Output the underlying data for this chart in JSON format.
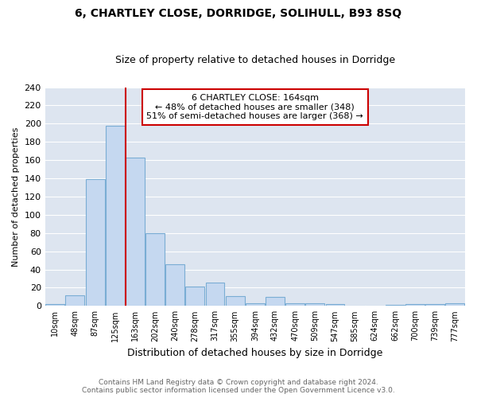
{
  "title1": "6, CHARTLEY CLOSE, DORRIDGE, SOLIHULL, B93 8SQ",
  "title2": "Size of property relative to detached houses in Dorridge",
  "xlabel": "Distribution of detached houses by size in Dorridge",
  "ylabel": "Number of detached properties",
  "bar_labels": [
    "10sqm",
    "48sqm",
    "87sqm",
    "125sqm",
    "163sqm",
    "202sqm",
    "240sqm",
    "278sqm",
    "317sqm",
    "355sqm",
    "394sqm",
    "432sqm",
    "470sqm",
    "509sqm",
    "547sqm",
    "585sqm",
    "624sqm",
    "662sqm",
    "700sqm",
    "739sqm",
    "777sqm"
  ],
  "bar_values": [
    2,
    12,
    139,
    198,
    163,
    80,
    46,
    21,
    26,
    11,
    3,
    10,
    3,
    3,
    2,
    0,
    0,
    1,
    2,
    2,
    3
  ],
  "bar_face_color": "#c5d8f0",
  "bar_edge_color": "#7aadd4",
  "bg_color": "#dde5f0",
  "grid_color": "#ffffff",
  "vline_color": "#cc0000",
  "vline_x_index": 4,
  "annotation_title": "6 CHARTLEY CLOSE: 164sqm",
  "annotation_line1": "← 48% of detached houses are smaller (348)",
  "annotation_line2": "51% of semi-detached houses are larger (368) →",
  "annotation_box_color": "#cc0000",
  "ylim_max": 240,
  "yticks": [
    0,
    20,
    40,
    60,
    80,
    100,
    120,
    140,
    160,
    180,
    200,
    220,
    240
  ],
  "fig_bg_color": "#ffffff",
  "footer1": "Contains HM Land Registry data © Crown copyright and database right 2024.",
  "footer2": "Contains public sector information licensed under the Open Government Licence v3.0.",
  "title1_fontsize": 10,
  "title2_fontsize": 9,
  "xlabel_fontsize": 9,
  "ylabel_fontsize": 8,
  "footer_fontsize": 6.5,
  "footer_color": "#666666"
}
